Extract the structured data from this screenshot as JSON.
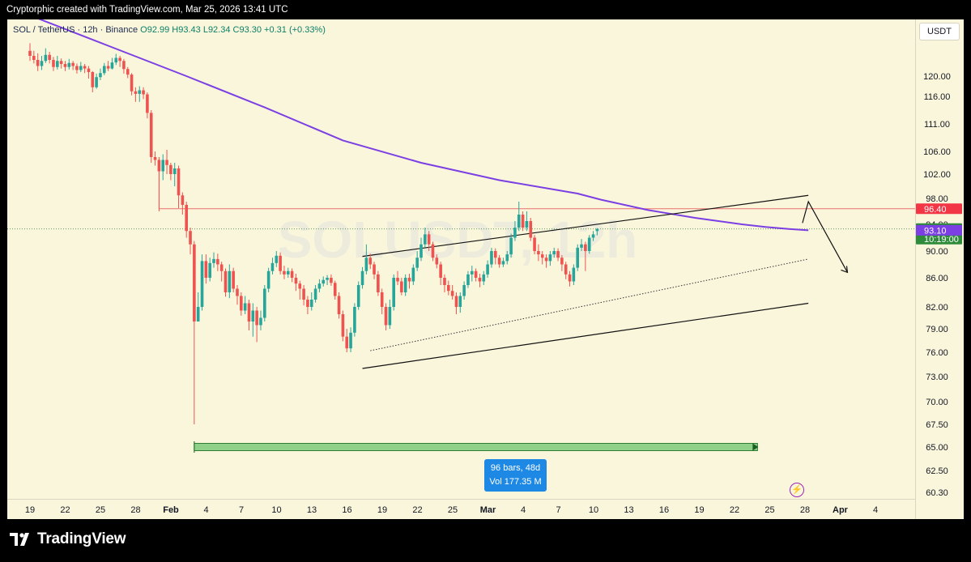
{
  "header": {
    "credit": "Cryptorphic created with TradingView.com, Mar 25, 2026 13:41 UTC"
  },
  "legend": {
    "symbol": "SOL / TetherUS · 12h · Binance",
    "ohlc": "O92.99 H93.43 L92.34 C93.30 +0.31 (+0.33%)"
  },
  "currency_label": "USDT",
  "watermark": "SOLUSDT, 12h",
  "measure": {
    "bars": "96 bars, 48d",
    "vol": "Vol 177.35 M"
  },
  "footer": {
    "brand": "TradingView"
  },
  "colors": {
    "up": "#26a69a",
    "down": "#ef5350",
    "ma": "#7b3fe4",
    "resistance": "#e85a5a",
    "range": "#8fd18b"
  },
  "chart_data": {
    "type": "candlestick",
    "symbol": "SOLUSDT",
    "interval": "12h",
    "y_ticks": [
      120.0,
      116.0,
      111.0,
      106.0,
      102.0,
      98.0,
      94.0,
      90.0,
      86.0,
      82.0,
      79.0,
      76.0,
      73.0,
      70.0,
      67.5,
      65.0,
      62.5,
      60.3
    ],
    "x_ticks": [
      "19",
      "22",
      "25",
      "28",
      "Feb",
      "4",
      "7",
      "10",
      "13",
      "16",
      "19",
      "22",
      "25",
      "Mar",
      "4",
      "7",
      "10",
      "13",
      "16",
      "19",
      "22",
      "25",
      "28",
      "Apr",
      "4"
    ],
    "last_price": 93.3,
    "countdown": "10:19:00",
    "ma_value": 93.1,
    "resistance_level": 96.4,
    "price_labels": [
      {
        "name": "resistance",
        "value": 96.4,
        "text": "96.40"
      },
      {
        "name": "last",
        "value": 93.3,
        "text": "93.30",
        "sub": "10:19:00"
      },
      {
        "name": "ma",
        "value": 93.1,
        "text": "93.10"
      }
    ],
    "candles": [
      [
        125.0,
        124.0,
        126.5,
        123.0
      ],
      [
        124.0,
        123.2,
        125.0,
        122.5
      ],
      [
        123.2,
        122.0,
        124.5,
        121.0
      ],
      [
        122.0,
        123.0,
        124.0,
        121.2
      ],
      [
        123.0,
        124.2,
        125.5,
        122.6
      ],
      [
        124.2,
        123.2,
        124.8,
        122.5
      ],
      [
        123.2,
        121.8,
        123.8,
        121.0
      ],
      [
        121.8,
        123.0,
        124.0,
        121.3
      ],
      [
        123.0,
        122.4,
        123.5,
        121.5
      ],
      [
        122.4,
        121.8,
        123.0,
        121.0
      ],
      [
        121.8,
        122.6,
        123.4,
        121.3
      ],
      [
        122.6,
        122.0,
        123.0,
        121.2
      ],
      [
        122.0,
        121.2,
        122.5,
        120.5
      ],
      [
        121.2,
        122.0,
        122.8,
        120.8
      ],
      [
        122.0,
        121.5,
        122.4,
        120.6
      ],
      [
        121.5,
        120.8,
        122.0,
        119.5
      ],
      [
        120.8,
        117.8,
        121.0,
        116.8
      ],
      [
        117.8,
        119.8,
        120.5,
        117.5
      ],
      [
        119.8,
        120.6,
        121.5,
        119.2
      ],
      [
        120.6,
        122.0,
        122.6,
        120.2
      ],
      [
        122.0,
        121.5,
        123.0,
        121.0
      ],
      [
        121.5,
        122.7,
        123.6,
        121.3
      ],
      [
        122.7,
        123.6,
        124.4,
        122.2
      ],
      [
        123.6,
        123.0,
        124.0,
        121.8
      ],
      [
        123.0,
        121.4,
        123.4,
        120.5
      ],
      [
        121.4,
        120.3,
        121.8,
        119.6
      ],
      [
        120.3,
        117.0,
        120.6,
        116.2
      ],
      [
        117.0,
        116.5,
        117.8,
        115.0
      ],
      [
        116.5,
        117.2,
        118.0,
        115.0
      ],
      [
        117.2,
        116.4,
        117.8,
        115.5
      ],
      [
        116.4,
        113.0,
        116.8,
        112.0
      ],
      [
        113.0,
        105.0,
        113.5,
        104.0
      ],
      [
        105.0,
        104.5,
        106.0,
        103.5
      ],
      [
        104.5,
        102.5,
        105.0,
        96.0
      ],
      [
        102.5,
        104.5,
        105.5,
        101.0
      ],
      [
        104.5,
        103.6,
        106.3,
        102.0
      ],
      [
        103.6,
        102.0,
        104.0,
        101.0
      ],
      [
        102.0,
        103.0,
        104.0,
        100.0
      ],
      [
        103.0,
        98.5,
        103.5,
        96.5
      ],
      [
        98.5,
        97.0,
        99.0,
        95.5
      ],
      [
        97.0,
        93.0,
        97.5,
        92.0
      ],
      [
        93.0,
        91.0,
        93.5,
        89.5
      ],
      [
        91.0,
        80.0,
        91.5,
        67.5
      ],
      [
        80.0,
        82.0,
        84.0,
        80.0
      ],
      [
        82.0,
        88.5,
        89.5,
        81.5
      ],
      [
        88.5,
        86.0,
        89.5,
        85.2
      ],
      [
        86.0,
        88.2,
        89.0,
        85.5
      ],
      [
        88.2,
        88.8,
        89.8,
        87.5
      ],
      [
        88.8,
        88.0,
        89.6,
        87.0
      ],
      [
        88.0,
        87.0,
        88.4,
        85.5
      ],
      [
        87.0,
        84.0,
        87.4,
        83.4
      ],
      [
        84.0,
        87.0,
        88.0,
        83.2
      ],
      [
        87.0,
        84.5,
        87.5,
        84.0
      ],
      [
        84.5,
        83.5,
        85.0,
        82.3
      ],
      [
        83.5,
        81.5,
        84.0,
        80.8
      ],
      [
        81.5,
        82.5,
        83.5,
        81.0
      ],
      [
        82.5,
        80.0,
        83.0,
        78.8
      ],
      [
        80.0,
        81.5,
        82.5,
        78.0
      ],
      [
        81.5,
        79.5,
        82.0,
        77.3
      ],
      [
        79.5,
        80.5,
        81.5,
        78.8
      ],
      [
        80.5,
        84.5,
        85.0,
        80.0
      ],
      [
        84.5,
        87.0,
        87.5,
        84.0
      ],
      [
        87.0,
        88.2,
        89.0,
        86.5
      ],
      [
        88.2,
        89.3,
        90.0,
        87.6
      ],
      [
        89.3,
        87.0,
        89.8,
        86.5
      ],
      [
        87.0,
        86.5,
        87.8,
        85.8
      ],
      [
        86.5,
        87.0,
        87.5,
        86.0
      ],
      [
        87.0,
        86.0,
        87.4,
        85.4
      ],
      [
        86.0,
        85.2,
        86.6,
        84.2
      ],
      [
        85.2,
        84.5,
        85.6,
        83.0
      ],
      [
        84.5,
        83.0,
        85.0,
        82.2
      ],
      [
        83.0,
        82.0,
        83.5,
        81.0
      ],
      [
        82.0,
        83.0,
        84.0,
        81.5
      ],
      [
        83.0,
        84.5,
        85.0,
        82.6
      ],
      [
        84.5,
        85.2,
        85.8,
        84.0
      ],
      [
        85.2,
        85.7,
        86.2,
        84.8
      ],
      [
        85.7,
        86.0,
        86.4,
        85.0
      ],
      [
        86.0,
        85.3,
        86.5,
        84.9
      ],
      [
        85.3,
        83.5,
        85.6,
        83.0
      ],
      [
        83.5,
        81.0,
        84.0,
        80.4
      ],
      [
        81.0,
        78.0,
        81.5,
        77.4
      ],
      [
        78.0,
        76.5,
        79.0,
        76.0
      ],
      [
        76.5,
        78.5,
        79.2,
        76.0
      ],
      [
        78.5,
        82.0,
        82.5,
        78.0
      ],
      [
        82.0,
        85.0,
        85.5,
        81.6
      ],
      [
        85.0,
        87.0,
        87.6,
        84.5
      ],
      [
        87.0,
        89.0,
        91.0,
        86.5
      ],
      [
        89.0,
        88.0,
        89.6,
        87.3
      ],
      [
        88.0,
        86.5,
        88.4,
        85.8
      ],
      [
        86.5,
        84.0,
        87.0,
        83.5
      ],
      [
        84.0,
        82.0,
        84.5,
        81.0
      ],
      [
        82.0,
        79.5,
        82.5,
        78.8
      ],
      [
        79.5,
        82.0,
        83.0,
        79.0
      ],
      [
        82.0,
        86.0,
        86.5,
        81.5
      ],
      [
        86.0,
        85.5,
        87.0,
        85.0
      ],
      [
        85.5,
        84.0,
        86.0,
        83.6
      ],
      [
        84.0,
        86.0,
        86.5,
        83.5
      ],
      [
        86.0,
        85.5,
        86.6,
        84.5
      ],
      [
        85.5,
        87.5,
        88.0,
        85.0
      ],
      [
        87.5,
        89.0,
        90.0,
        87.0
      ],
      [
        89.0,
        91.0,
        92.0,
        88.5
      ],
      [
        91.0,
        92.5,
        93.5,
        90.5
      ],
      [
        92.5,
        91.0,
        93.0,
        90.0
      ],
      [
        91.0,
        89.0,
        91.4,
        88.5
      ],
      [
        89.0,
        88.0,
        89.5,
        87.4
      ],
      [
        88.0,
        86.0,
        88.4,
        85.0
      ],
      [
        86.0,
        85.0,
        86.5,
        84.0
      ],
      [
        85.0,
        84.2,
        85.6,
        83.6
      ],
      [
        84.2,
        83.5,
        85.0,
        83.0
      ],
      [
        83.5,
        82.0,
        84.0,
        81.0
      ],
      [
        82.0,
        83.5,
        84.0,
        81.2
      ],
      [
        83.5,
        85.0,
        85.5,
        83.0
      ],
      [
        85.0,
        86.5,
        87.0,
        84.6
      ],
      [
        86.5,
        87.0,
        87.8,
        85.5
      ],
      [
        87.0,
        86.0,
        87.4,
        85.5
      ],
      [
        86.0,
        85.5,
        86.6,
        84.7
      ],
      [
        85.5,
        86.5,
        87.0,
        85.0
      ],
      [
        86.5,
        88.0,
        88.6,
        86.0
      ],
      [
        88.0,
        90.0,
        90.5,
        87.5
      ],
      [
        90.0,
        89.0,
        90.4,
        88.0
      ],
      [
        89.0,
        88.0,
        89.4,
        87.5
      ],
      [
        88.0,
        88.5,
        89.0,
        87.6
      ],
      [
        88.5,
        89.5,
        90.0,
        88.0
      ],
      [
        89.5,
        92.0,
        92.6,
        89.0
      ],
      [
        92.0,
        93.5,
        94.5,
        91.5
      ],
      [
        93.5,
        95.5,
        97.5,
        93.0
      ],
      [
        95.5,
        93.5,
        96.0,
        93.0
      ],
      [
        93.5,
        94.5,
        96.0,
        93.0
      ],
      [
        94.5,
        92.0,
        95.0,
        91.5
      ],
      [
        92.0,
        90.0,
        92.4,
        89.5
      ],
      [
        90.0,
        89.5,
        91.0,
        88.5
      ],
      [
        89.5,
        89.0,
        90.0,
        88.0
      ],
      [
        89.0,
        88.5,
        89.5,
        87.5
      ],
      [
        88.5,
        89.5,
        90.0,
        87.8
      ],
      [
        89.5,
        90.0,
        90.5,
        89.0
      ],
      [
        90.0,
        89.0,
        90.4,
        88.5
      ],
      [
        89.0,
        88.0,
        89.4,
        87.0
      ],
      [
        88.0,
        86.5,
        88.4,
        85.8
      ],
      [
        86.5,
        85.5,
        87.0,
        84.8
      ],
      [
        85.5,
        87.5,
        88.0,
        85.0
      ],
      [
        87.5,
        90.5,
        91.0,
        87.0
      ],
      [
        90.5,
        91.0,
        91.8,
        90.0
      ],
      [
        91.0,
        90.0,
        91.4,
        87.0
      ],
      [
        90.0,
        92.0,
        92.4,
        89.6
      ],
      [
        92.0,
        92.5,
        93.0,
        91.5
      ],
      [
        92.99,
        93.3,
        93.43,
        92.34
      ]
    ],
    "ma_points": [
      [
        0,
        132
      ],
      [
        20,
        126
      ],
      [
        40,
        120
      ],
      [
        60,
        114
      ],
      [
        80,
        108
      ],
      [
        100,
        104
      ],
      [
        120,
        101
      ],
      [
        140,
        98.8
      ],
      [
        146,
        97.8
      ],
      [
        152,
        97.0
      ],
      [
        158,
        96.2
      ],
      [
        164,
        95.6
      ],
      [
        170,
        95.0
      ],
      [
        176,
        94.5
      ],
      [
        182,
        94.0
      ],
      [
        188,
        93.6
      ],
      [
        194,
        93.3
      ],
      [
        199,
        93.1
      ]
    ],
    "channel": {
      "upper": [
        [
          85,
          89.2
        ],
        [
          199,
          98.5
        ]
      ],
      "lower": [
        [
          85,
          74.0
        ],
        [
          199,
          82.5
        ]
      ],
      "inner_dotted": [
        [
          87,
          76.2
        ],
        [
          199,
          88.8
        ]
      ]
    },
    "projection": [
      [
        197.5,
        94.2
      ],
      [
        199,
        97.5
      ],
      [
        209,
        86.8
      ]
    ],
    "range": {
      "from_index": 42,
      "to_index": 186,
      "level": 65.0
    }
  }
}
